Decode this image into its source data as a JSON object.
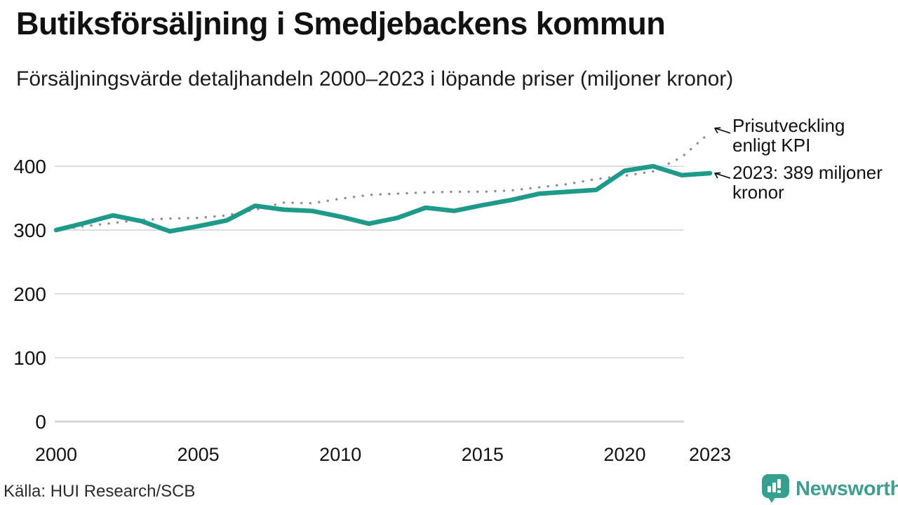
{
  "header": {
    "title": "Butiksförsäljning i Smedjebackens kommun",
    "subtitle": "Försäljningsvärde detaljhandeln 2000–2023 i löpande priser (miljoner kronor)"
  },
  "chart_data": {
    "type": "line",
    "x": [
      2000,
      2001,
      2002,
      2003,
      2004,
      2005,
      2006,
      2007,
      2008,
      2009,
      2010,
      2011,
      2012,
      2013,
      2014,
      2015,
      2016,
      2017,
      2018,
      2019,
      2020,
      2021,
      2022,
      2023
    ],
    "series": [
      {
        "name": "Försäljningsvärde detaljhandeln (miljoner kronor)",
        "style": "solid",
        "color": "#1e9a8b",
        "values": [
          300,
          311,
          323,
          314,
          298,
          306,
          315,
          338,
          332,
          330,
          321,
          310,
          319,
          335,
          330,
          339,
          347,
          357,
          360,
          363,
          393,
          400,
          386,
          389
        ]
      },
      {
        "name": "Prisutveckling enligt KPI",
        "style": "dotted",
        "color": "#8e8e8e",
        "values": [
          300,
          306,
          311,
          316,
          318,
          319,
          323,
          332,
          343,
          342,
          349,
          355,
          357,
          359,
          360,
          360,
          362,
          367,
          372,
          380,
          385,
          392,
          414,
          453
        ]
      }
    ],
    "title": "Butiksförsäljning i Smedjebackens kommun",
    "subtitle": "Försäljningsvärde detaljhandeln 2000–2023 i löpande priser (miljoner kronor)",
    "xlabel": "",
    "ylabel": "",
    "ylim": [
      0,
      470
    ],
    "yticks": [
      0,
      100,
      200,
      300,
      400
    ],
    "xticks": [
      2000,
      2005,
      2010,
      2015,
      2020,
      2023
    ],
    "grid": "horizontal",
    "legend_position": "annotations-right",
    "annotations": [
      {
        "text": "Prisutveckling enligt KPI",
        "series": "Prisutveckling enligt KPI",
        "x": 2023
      },
      {
        "text": "2023: 389 miljoner kronor",
        "series": "Försäljningsvärde detaljhandeln (miljoner kronor)",
        "x": 2023,
        "value": 389
      }
    ]
  },
  "annotations": {
    "kpi": "Prisutveckling enligt KPI",
    "latest": "2023: 389 miljoner kronor"
  },
  "footer": {
    "source": "Källa: HUI Research/SCB",
    "brand": "Newsworthy"
  },
  "colors": {
    "sales_line": "#1e9a8b",
    "kpi_line": "#8e8e8e",
    "brand_teal": "#35a090",
    "grid": "#dedede",
    "text": "#111111"
  }
}
